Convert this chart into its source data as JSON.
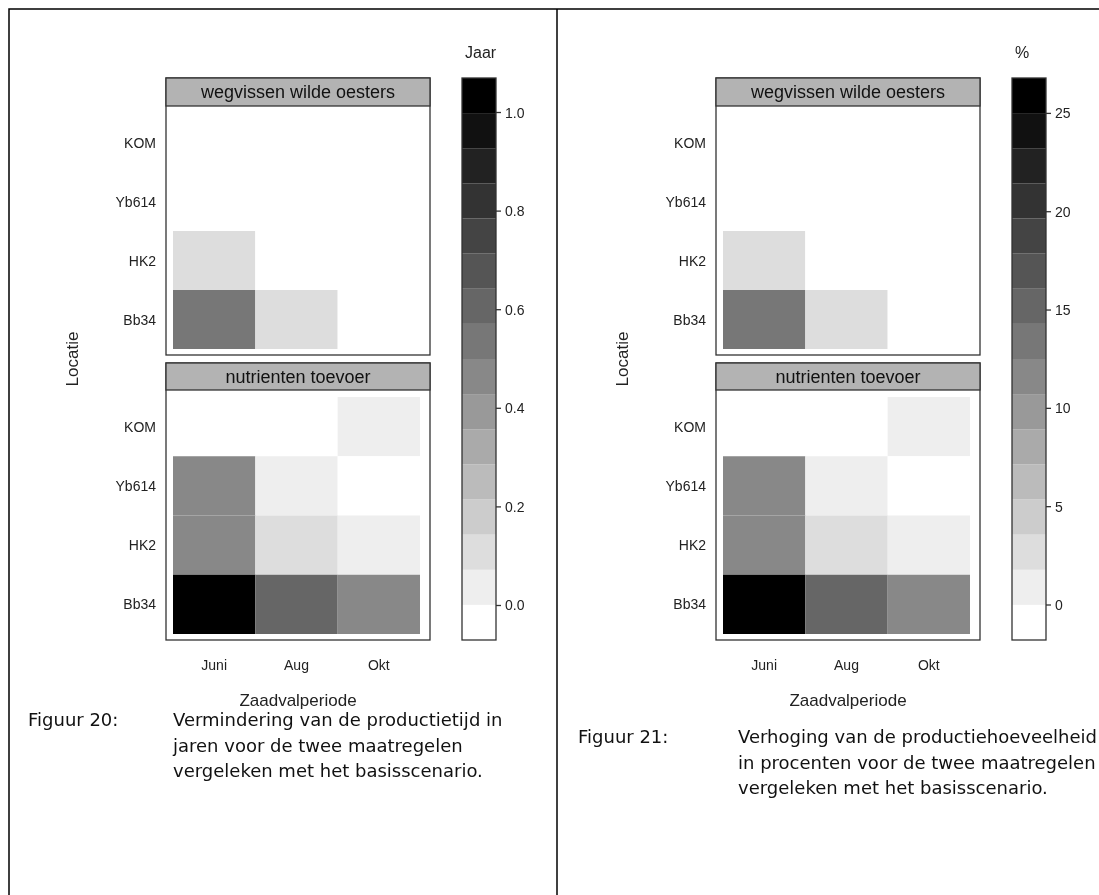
{
  "chart_data": [
    {
      "type": "heatmap",
      "xlabel": "Zaadvalperiode",
      "ylabel": "Locatie",
      "clabel": "Jaar",
      "categories": [
        "Juni",
        "Aug",
        "Okt"
      ],
      "y_categories": [
        "KOM",
        "Yb614",
        "HK2",
        "Bb34",
        "KOM",
        "Yb614",
        "HK2",
        "Bb34"
      ],
      "cells": [
        [
          0,
          0,
          0
        ],
        [
          0,
          0,
          0
        ],
        [
          0.1,
          0,
          0
        ],
        [
          0.53,
          0.1,
          0
        ],
        [
          0,
          0,
          0.04
        ],
        [
          0.46,
          0.04,
          0
        ],
        [
          0.46,
          0.1,
          0.04
        ],
        [
          1.04,
          0.6,
          0.46
        ]
      ],
      "clim": [
        -0.07,
        1.07
      ],
      "cticks": [
        {
          "value": 0,
          "label": "0.0"
        },
        0.2,
        0.4,
        0.6,
        0.8,
        {
          "value": 1,
          "label": "1.0"
        }
      ],
      "colors": [
        "#ffffff",
        "#eeeeee",
        "#dddddd",
        "#cccccc",
        "#bbbbbb",
        "#aaaaaa",
        "#999999",
        "#888888",
        "#777777",
        "#666666",
        "#555555",
        "#444444",
        "#333333",
        "#222222",
        "#111111",
        "#000000"
      ],
      "annotations": [
        "wegvissen wilde oesters",
        "nutrienten toevoer",
        "Figuur 20:",
        "Vermindering van de productietijd in jaren voor de twee maatregelen vergeleken met het basisscenario."
      ]
    },
    {
      "type": "heatmap",
      "xlabel": "Zaadvalperiode",
      "ylabel": "Locatie",
      "clabel": "%",
      "categories": [
        "Juni",
        "Aug",
        "Okt"
      ],
      "y_categories": [
        "KOM",
        "Yb614",
        "HK2",
        "Bb34",
        "KOM",
        "Yb614",
        "HK2",
        "Bb34"
      ],
      "cells": [
        [
          0,
          0,
          0
        ],
        [
          0,
          0,
          0
        ],
        [
          2.7,
          0,
          0
        ],
        [
          13.4,
          2.7,
          0
        ],
        [
          0,
          0,
          1
        ],
        [
          11.6,
          1,
          0
        ],
        [
          11.6,
          2.7,
          1
        ],
        [
          25.9,
          15.2,
          11.6
        ]
      ],
      "clim": [
        -1.78,
        26.8
      ],
      "cticks": [
        0,
        5,
        10,
        15,
        20,
        25
      ],
      "colors": [
        "#ffffff",
        "#eeeeee",
        "#dddddd",
        "#cccccc",
        "#bbbbbb",
        "#aaaaaa",
        "#999999",
        "#888888",
        "#777777",
        "#666666",
        "#555555",
        "#444444",
        "#333333",
        "#222222",
        "#111111",
        "#000000"
      ],
      "annotations": [
        "wegvissen wilde oesters",
        "nutrienten toevoer",
        "Figuur 21:",
        "Verhoging van de productiehoeveelheid in procenten voor de twee maatregelen vergeleken met het basisscenario."
      ]
    }
  ]
}
